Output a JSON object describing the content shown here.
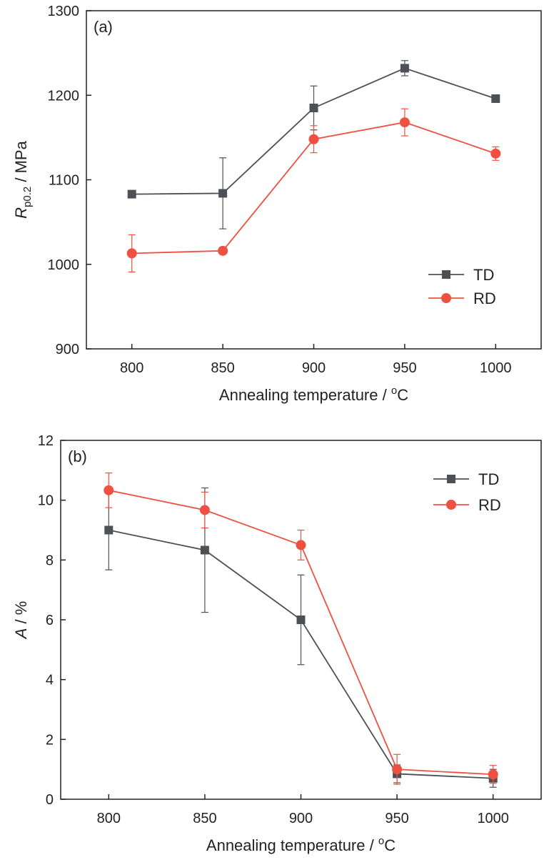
{
  "colors": {
    "td": "#4d5054",
    "rd": "#ee5141",
    "axis": "#222222"
  },
  "chart_data": [
    {
      "type": "line",
      "panel_label": "(a)",
      "x": [
        800,
        850,
        900,
        950,
        1000
      ],
      "x_ticks": [
        "800",
        "850",
        "900",
        "950",
        "1000"
      ],
      "xlim": [
        775,
        1025
      ],
      "xlabel": {
        "main": "Annealing temperature / ",
        "sup": "o",
        "tail": "C"
      },
      "ylabel": {
        "symbol": "R",
        "sub": "p0.2",
        "unit": " / MPa"
      },
      "ylim": [
        900,
        1300
      ],
      "y_ticks": [
        "900",
        "1000",
        "1100",
        "1200",
        "1300"
      ],
      "grid": false,
      "legend_position": "bottom-right",
      "series": [
        {
          "name": "TD",
          "values": [
            1083,
            1084,
            1185,
            1232,
            1196
          ],
          "errors": [
            0,
            42,
            26,
            9,
            0
          ]
        },
        {
          "name": "RD",
          "values": [
            1013,
            1016,
            1148,
            1168,
            1131
          ],
          "errors": [
            22,
            4,
            16,
            16,
            8
          ]
        }
      ]
    },
    {
      "type": "line",
      "panel_label": "(b)",
      "x": [
        800,
        850,
        900,
        950,
        1000
      ],
      "x_ticks": [
        "800",
        "850",
        "900",
        "950",
        "1000"
      ],
      "xlim": [
        775,
        1025
      ],
      "xlabel": {
        "main": "Annealing temperature / ",
        "sup": "o",
        "tail": "C"
      },
      "ylabel": {
        "symbol": "A",
        "sub": "",
        "unit": " / %"
      },
      "ylim": [
        0,
        12
      ],
      "y_ticks": [
        "0",
        "2",
        "4",
        "6",
        "8",
        "10",
        "12"
      ],
      "grid": false,
      "legend_position": "top-right",
      "series": [
        {
          "name": "TD",
          "values": [
            9.0,
            8.33,
            6.0,
            0.85,
            0.7
          ],
          "errors": [
            1.33,
            2.08,
            1.5,
            0.3,
            0.3
          ]
        },
        {
          "name": "RD",
          "values": [
            10.33,
            9.67,
            8.5,
            1.0,
            0.83
          ],
          "errors": [
            0.58,
            0.6,
            0.5,
            0.5,
            0.3
          ]
        }
      ]
    }
  ]
}
